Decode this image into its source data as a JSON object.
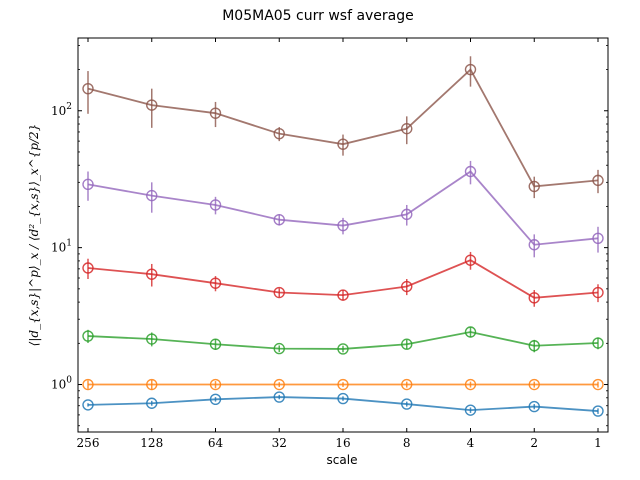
{
  "chart_data": {
    "type": "line",
    "title": "M05MA05 curr wsf average",
    "xlabel": "scale",
    "ylabel": "⟨|d_{x,s}|^p⟩_x / ⟨d²_{x,s}⟩_x^{p/2}",
    "yscale": "log",
    "ylim": [
      0.45,
      340
    ],
    "x_ticks": [
      "256",
      "128",
      "64",
      "32",
      "16",
      "8",
      "4",
      "2",
      "1"
    ],
    "y_ticks": [
      {
        "value": 1,
        "base": "10",
        "exp": "0"
      },
      {
        "value": 10,
        "base": "10",
        "exp": "1"
      },
      {
        "value": 100,
        "base": "10",
        "exp": "2"
      }
    ],
    "x_reversed": true,
    "grid": false,
    "series": [
      {
        "color": "#1f77b4",
        "values": [
          0.71,
          0.73,
          0.78,
          0.81,
          0.79,
          0.72,
          0.65,
          0.69,
          0.64
        ],
        "err": [
          0.02,
          0.03,
          0.03,
          0.03,
          0.03,
          0.03,
          0.03,
          0.03,
          0.03
        ]
      },
      {
        "color": "#ff7f0e",
        "values": [
          1.0,
          1.0,
          1.0,
          1.0,
          1.0,
          1.0,
          1.0,
          1.0,
          1.0
        ],
        "err": [
          0.07,
          0.08,
          0.06,
          0.04,
          0.04,
          0.05,
          0.05,
          0.05,
          0.05
        ]
      },
      {
        "color": "#2ca02c",
        "values": [
          2.26,
          2.15,
          1.97,
          1.83,
          1.82,
          1.97,
          2.42,
          1.92,
          2.01
        ],
        "err": [
          0.25,
          0.25,
          0.18,
          0.1,
          0.1,
          0.15,
          0.2,
          0.2,
          0.2
        ]
      },
      {
        "color": "#d62728",
        "values": [
          7.1,
          6.4,
          5.5,
          4.7,
          4.5,
          5.2,
          8.1,
          4.3,
          4.7
        ],
        "err": [
          1.2,
          1.2,
          0.7,
          0.35,
          0.4,
          0.7,
          1.2,
          0.6,
          0.7
        ]
      },
      {
        "color": "#9467bd",
        "values": [
          29,
          24,
          20.5,
          16,
          14.5,
          17.5,
          36,
          10.5,
          11.7
        ],
        "err": [
          7,
          6,
          3,
          1.5,
          2,
          3,
          7,
          2,
          2.5
        ]
      },
      {
        "color": "#8c564b",
        "values": [
          145,
          110,
          96,
          68,
          57,
          74,
          200,
          28,
          31
        ],
        "err": [
          50,
          35,
          20,
          8,
          10,
          17,
          50,
          5,
          6
        ]
      }
    ]
  }
}
